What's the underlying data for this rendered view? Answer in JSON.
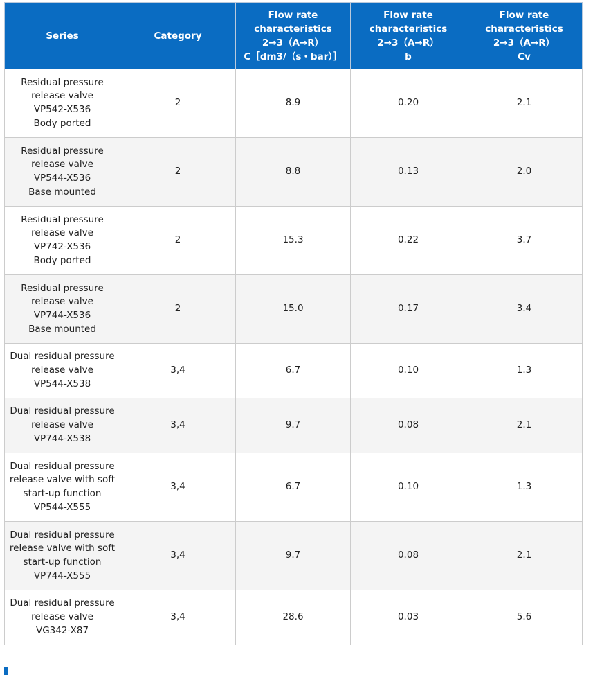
{
  "table": {
    "headers": [
      {
        "lines": [
          "Series"
        ]
      },
      {
        "lines": [
          "Category"
        ]
      },
      {
        "lines": [
          "Flow rate",
          "characteristics",
          "2→3（A→R）",
          "C［dm3/（s・bar）］"
        ]
      },
      {
        "lines": [
          "Flow rate",
          "characteristics",
          "2→3（A→R）",
          "b"
        ]
      },
      {
        "lines": [
          "Flow rate",
          "characteristics",
          "2→3（A→R）",
          "Cv"
        ]
      }
    ],
    "rows": [
      {
        "series": [
          "Residual pressure",
          "release valve",
          "VP542-X536",
          "Body ported"
        ],
        "category": "2",
        "c": "8.9",
        "b": "0.20",
        "cv": "2.1"
      },
      {
        "series": [
          "Residual pressure",
          "release valve",
          "VP544-X536",
          "Base mounted"
        ],
        "category": "2",
        "c": "8.8",
        "b": "0.13",
        "cv": "2.0"
      },
      {
        "series": [
          "Residual pressure",
          "release valve",
          "VP742-X536",
          "Body ported"
        ],
        "category": "2",
        "c": "15.3",
        "b": "0.22",
        "cv": "3.7"
      },
      {
        "series": [
          "Residual pressure",
          "release valve",
          "VP744-X536",
          "Base mounted"
        ],
        "category": "2",
        "c": "15.0",
        "b": "0.17",
        "cv": "3.4"
      },
      {
        "series": [
          "Dual residual pressure",
          "release valve",
          "VP544-X538"
        ],
        "category": "3,4",
        "c": "6.7",
        "b": "0.10",
        "cv": "1.3"
      },
      {
        "series": [
          "Dual residual pressure",
          "release valve",
          "VP744-X538"
        ],
        "category": "3,4",
        "c": "9.7",
        "b": "0.08",
        "cv": "2.1"
      },
      {
        "series": [
          "Dual residual pressure",
          "release valve with soft",
          "start-up function",
          "VP544-X555"
        ],
        "category": "3,4",
        "c": "6.7",
        "b": "0.10",
        "cv": "1.3"
      },
      {
        "series": [
          "Dual residual pressure",
          "release valve with soft",
          "start-up function",
          "VP744-X555"
        ],
        "category": "3,4",
        "c": "9.7",
        "b": "0.08",
        "cv": "2.1"
      },
      {
        "series": [
          "Dual residual pressure",
          "release valve",
          "VG342-X87"
        ],
        "category": "3,4",
        "c": "28.6",
        "b": "0.03",
        "cv": "5.6"
      }
    ]
  },
  "colors": {
    "header_bg": "#0a6cc2",
    "header_text": "#ffffff",
    "row_alt_bg": "#f4f4f4",
    "border": "#cccccc"
  }
}
